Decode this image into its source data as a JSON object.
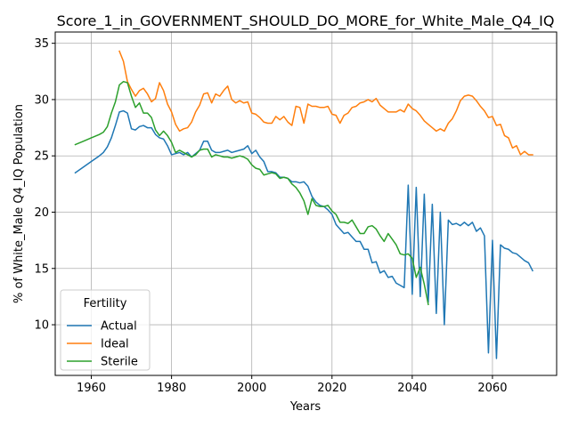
{
  "chart_data": {
    "type": "line",
    "title": "Score_1_in_GOVERNMENT_SHOULD_DO_MORE_for_White_Male_Q4_IQ",
    "xlabel": "Years",
    "ylabel": "% of White_Male Q4_IQ Population",
    "xlim": [
      1951,
      2076
    ],
    "ylim": [
      5.5,
      36.0
    ],
    "xticks": [
      1960,
      1980,
      2000,
      2020,
      2040,
      2060
    ],
    "yticks": [
      10,
      15,
      20,
      25,
      30,
      35
    ],
    "grid": true,
    "legend": {
      "title": "Fertility",
      "placement": "lower-left"
    },
    "series": [
      {
        "name": "Actual",
        "color": "#1f77b4",
        "points": [
          [
            1956,
            23.5
          ],
          [
            1958,
            24.0
          ],
          [
            1960,
            24.5
          ],
          [
            1962,
            25.0
          ],
          [
            1963,
            25.3
          ],
          [
            1964,
            25.8
          ],
          [
            1965,
            26.6
          ],
          [
            1966,
            27.7
          ],
          [
            1967,
            28.9
          ],
          [
            1968,
            29.0
          ],
          [
            1969,
            28.8
          ],
          [
            1970,
            27.4
          ],
          [
            1971,
            27.3
          ],
          [
            1972,
            27.6
          ],
          [
            1973,
            27.7
          ],
          [
            1974,
            27.5
          ],
          [
            1975,
            27.5
          ],
          [
            1976,
            26.9
          ],
          [
            1977,
            26.6
          ],
          [
            1978,
            26.5
          ],
          [
            1979,
            25.9
          ],
          [
            1980,
            25.1
          ],
          [
            1981,
            25.2
          ],
          [
            1982,
            25.3
          ],
          [
            1983,
            25.1
          ],
          [
            1984,
            25.3
          ],
          [
            1985,
            24.9
          ],
          [
            1986,
            25.2
          ],
          [
            1987,
            25.5
          ],
          [
            1988,
            26.3
          ],
          [
            1989,
            26.3
          ],
          [
            1990,
            25.5
          ],
          [
            1991,
            25.3
          ],
          [
            1992,
            25.3
          ],
          [
            1993,
            25.4
          ],
          [
            1994,
            25.5
          ],
          [
            1995,
            25.3
          ],
          [
            1996,
            25.4
          ],
          [
            1997,
            25.5
          ],
          [
            1998,
            25.6
          ],
          [
            1999,
            25.9
          ],
          [
            2000,
            25.2
          ],
          [
            2001,
            25.5
          ],
          [
            2002,
            24.9
          ],
          [
            2003,
            24.5
          ],
          [
            2004,
            23.6
          ],
          [
            2005,
            23.6
          ],
          [
            2006,
            23.5
          ],
          [
            2007,
            23.1
          ],
          [
            2008,
            23.1
          ],
          [
            2009,
            23.0
          ],
          [
            2010,
            22.7
          ],
          [
            2011,
            22.7
          ],
          [
            2012,
            22.6
          ],
          [
            2013,
            22.7
          ],
          [
            2014,
            22.3
          ],
          [
            2015,
            21.4
          ],
          [
            2016,
            20.9
          ],
          [
            2017,
            20.6
          ],
          [
            2018,
            20.5
          ],
          [
            2019,
            20.2
          ],
          [
            2020,
            19.8
          ],
          [
            2021,
            18.9
          ],
          [
            2022,
            18.5
          ],
          [
            2023,
            18.1
          ],
          [
            2024,
            18.2
          ],
          [
            2025,
            17.8
          ],
          [
            2026,
            17.4
          ],
          [
            2027,
            17.4
          ],
          [
            2028,
            16.7
          ],
          [
            2029,
            16.7
          ],
          [
            2030,
            15.5
          ],
          [
            2031,
            15.6
          ],
          [
            2032,
            14.6
          ],
          [
            2033,
            14.8
          ],
          [
            2034,
            14.2
          ],
          [
            2035,
            14.3
          ],
          [
            2036,
            13.7
          ],
          [
            2037,
            13.5
          ],
          [
            2038,
            13.3
          ],
          [
            2039,
            22.4
          ],
          [
            2040,
            12.7
          ],
          [
            2041,
            22.2
          ],
          [
            2042,
            12.5
          ],
          [
            2043,
            21.6
          ],
          [
            2044,
            12.0
          ],
          [
            2045,
            20.7
          ],
          [
            2046,
            11.0
          ],
          [
            2047,
            20.0
          ],
          [
            2048,
            10.0
          ],
          [
            2049,
            19.3
          ],
          [
            2050,
            18.9
          ],
          [
            2051,
            19.0
          ],
          [
            2052,
            18.8
          ],
          [
            2053,
            19.1
          ],
          [
            2054,
            18.8
          ],
          [
            2055,
            19.1
          ],
          [
            2056,
            18.3
          ],
          [
            2057,
            18.6
          ],
          [
            2058,
            17.9
          ],
          [
            2059,
            7.5
          ],
          [
            2060,
            17.5
          ],
          [
            2061,
            7.0
          ],
          [
            2062,
            17.1
          ],
          [
            2063,
            16.8
          ],
          [
            2064,
            16.7
          ],
          [
            2065,
            16.4
          ],
          [
            2066,
            16.3
          ],
          [
            2067,
            16.0
          ],
          [
            2068,
            15.7
          ],
          [
            2069,
            15.5
          ],
          [
            2070,
            14.8
          ]
        ]
      },
      {
        "name": "Ideal",
        "color": "#ff7f0e",
        "points": [
          [
            1967,
            34.3
          ],
          [
            1968,
            33.4
          ],
          [
            1969,
            31.6
          ],
          [
            1970,
            30.9
          ],
          [
            1971,
            30.3
          ],
          [
            1972,
            30.8
          ],
          [
            1973,
            31.0
          ],
          [
            1974,
            30.5
          ],
          [
            1975,
            29.8
          ],
          [
            1976,
            30.1
          ],
          [
            1977,
            31.5
          ],
          [
            1978,
            30.8
          ],
          [
            1979,
            29.6
          ],
          [
            1980,
            28.9
          ],
          [
            1981,
            27.8
          ],
          [
            1982,
            27.2
          ],
          [
            1983,
            27.4
          ],
          [
            1984,
            27.5
          ],
          [
            1985,
            28.0
          ],
          [
            1986,
            28.9
          ],
          [
            1987,
            29.5
          ],
          [
            1988,
            30.5
          ],
          [
            1989,
            30.6
          ],
          [
            1990,
            29.7
          ],
          [
            1991,
            30.5
          ],
          [
            1992,
            30.3
          ],
          [
            1993,
            30.8
          ],
          [
            1994,
            31.2
          ],
          [
            1995,
            30.0
          ],
          [
            1996,
            29.7
          ],
          [
            1997,
            29.9
          ],
          [
            1998,
            29.7
          ],
          [
            1999,
            29.8
          ],
          [
            2000,
            28.8
          ],
          [
            2001,
            28.7
          ],
          [
            2002,
            28.4
          ],
          [
            2003,
            28.0
          ],
          [
            2004,
            27.9
          ],
          [
            2005,
            27.9
          ],
          [
            2006,
            28.5
          ],
          [
            2007,
            28.2
          ],
          [
            2008,
            28.5
          ],
          [
            2009,
            28.0
          ],
          [
            2010,
            27.7
          ],
          [
            2011,
            29.4
          ],
          [
            2012,
            29.3
          ],
          [
            2013,
            27.9
          ],
          [
            2014,
            29.6
          ],
          [
            2015,
            29.4
          ],
          [
            2016,
            29.4
          ],
          [
            2017,
            29.3
          ],
          [
            2018,
            29.3
          ],
          [
            2019,
            29.4
          ],
          [
            2020,
            28.7
          ],
          [
            2021,
            28.6
          ],
          [
            2022,
            27.9
          ],
          [
            2023,
            28.6
          ],
          [
            2024,
            28.8
          ],
          [
            2025,
            29.3
          ],
          [
            2026,
            29.4
          ],
          [
            2027,
            29.7
          ],
          [
            2028,
            29.8
          ],
          [
            2029,
            30.0
          ],
          [
            2030,
            29.8
          ],
          [
            2031,
            30.1
          ],
          [
            2032,
            29.5
          ],
          [
            2033,
            29.2
          ],
          [
            2034,
            28.9
          ],
          [
            2035,
            28.9
          ],
          [
            2036,
            28.9
          ],
          [
            2037,
            29.1
          ],
          [
            2038,
            28.9
          ],
          [
            2039,
            29.6
          ],
          [
            2040,
            29.2
          ],
          [
            2041,
            29.0
          ],
          [
            2042,
            28.6
          ],
          [
            2043,
            28.1
          ],
          [
            2044,
            27.8
          ],
          [
            2045,
            27.5
          ],
          [
            2046,
            27.2
          ],
          [
            2047,
            27.4
          ],
          [
            2048,
            27.2
          ],
          [
            2049,
            27.9
          ],
          [
            2050,
            28.3
          ],
          [
            2051,
            29.0
          ],
          [
            2052,
            29.9
          ],
          [
            2053,
            30.3
          ],
          [
            2054,
            30.4
          ],
          [
            2055,
            30.3
          ],
          [
            2056,
            29.9
          ],
          [
            2057,
            29.4
          ],
          [
            2058,
            29.0
          ],
          [
            2059,
            28.4
          ],
          [
            2060,
            28.5
          ],
          [
            2061,
            27.7
          ],
          [
            2062,
            27.8
          ],
          [
            2063,
            26.8
          ],
          [
            2064,
            26.6
          ],
          [
            2065,
            25.7
          ],
          [
            2066,
            25.9
          ],
          [
            2067,
            25.1
          ],
          [
            2068,
            25.4
          ],
          [
            2069,
            25.1
          ],
          [
            2070,
            25.1
          ]
        ]
      },
      {
        "name": "Sterile",
        "color": "#2ca02c",
        "points": [
          [
            1956,
            26.0
          ],
          [
            1958,
            26.3
          ],
          [
            1960,
            26.6
          ],
          [
            1962,
            26.9
          ],
          [
            1963,
            27.1
          ],
          [
            1964,
            27.6
          ],
          [
            1965,
            28.8
          ],
          [
            1966,
            29.8
          ],
          [
            1967,
            31.3
          ],
          [
            1968,
            31.6
          ],
          [
            1969,
            31.5
          ],
          [
            1970,
            30.3
          ],
          [
            1971,
            29.3
          ],
          [
            1972,
            29.7
          ],
          [
            1973,
            28.8
          ],
          [
            1974,
            28.8
          ],
          [
            1975,
            28.4
          ],
          [
            1976,
            27.3
          ],
          [
            1977,
            26.8
          ],
          [
            1978,
            27.2
          ],
          [
            1979,
            26.8
          ],
          [
            1980,
            26.2
          ],
          [
            1981,
            25.3
          ],
          [
            1982,
            25.5
          ],
          [
            1983,
            25.3
          ],
          [
            1984,
            25.1
          ],
          [
            1985,
            24.9
          ],
          [
            1986,
            25.1
          ],
          [
            1987,
            25.5
          ],
          [
            1988,
            25.6
          ],
          [
            1989,
            25.6
          ],
          [
            1990,
            24.9
          ],
          [
            1991,
            25.1
          ],
          [
            1992,
            25.0
          ],
          [
            1993,
            24.9
          ],
          [
            1994,
            24.9
          ],
          [
            1995,
            24.8
          ],
          [
            1996,
            24.9
          ],
          [
            1997,
            25.0
          ],
          [
            1998,
            24.9
          ],
          [
            1999,
            24.7
          ],
          [
            2000,
            24.2
          ],
          [
            2001,
            23.9
          ],
          [
            2002,
            23.8
          ],
          [
            2003,
            23.3
          ],
          [
            2004,
            23.4
          ],
          [
            2005,
            23.5
          ],
          [
            2006,
            23.4
          ],
          [
            2007,
            23.0
          ],
          [
            2008,
            23.1
          ],
          [
            2009,
            23.0
          ],
          [
            2010,
            22.5
          ],
          [
            2011,
            22.2
          ],
          [
            2012,
            21.7
          ],
          [
            2013,
            21.0
          ],
          [
            2014,
            19.8
          ],
          [
            2015,
            21.2
          ],
          [
            2016,
            20.6
          ],
          [
            2017,
            20.5
          ],
          [
            2018,
            20.5
          ],
          [
            2019,
            20.6
          ],
          [
            2020,
            20.1
          ],
          [
            2021,
            19.8
          ],
          [
            2022,
            19.1
          ],
          [
            2023,
            19.1
          ],
          [
            2024,
            19.0
          ],
          [
            2025,
            19.3
          ],
          [
            2026,
            18.7
          ],
          [
            2027,
            18.1
          ],
          [
            2028,
            18.1
          ],
          [
            2029,
            18.7
          ],
          [
            2030,
            18.8
          ],
          [
            2031,
            18.5
          ],
          [
            2032,
            17.9
          ],
          [
            2033,
            17.4
          ],
          [
            2034,
            18.1
          ],
          [
            2035,
            17.6
          ],
          [
            2036,
            17.1
          ],
          [
            2037,
            16.3
          ],
          [
            2038,
            16.2
          ],
          [
            2039,
            16.3
          ],
          [
            2040,
            15.9
          ],
          [
            2041,
            14.2
          ],
          [
            2042,
            15.1
          ],
          [
            2043,
            13.6
          ],
          [
            2044,
            11.8
          ]
        ]
      }
    ]
  }
}
